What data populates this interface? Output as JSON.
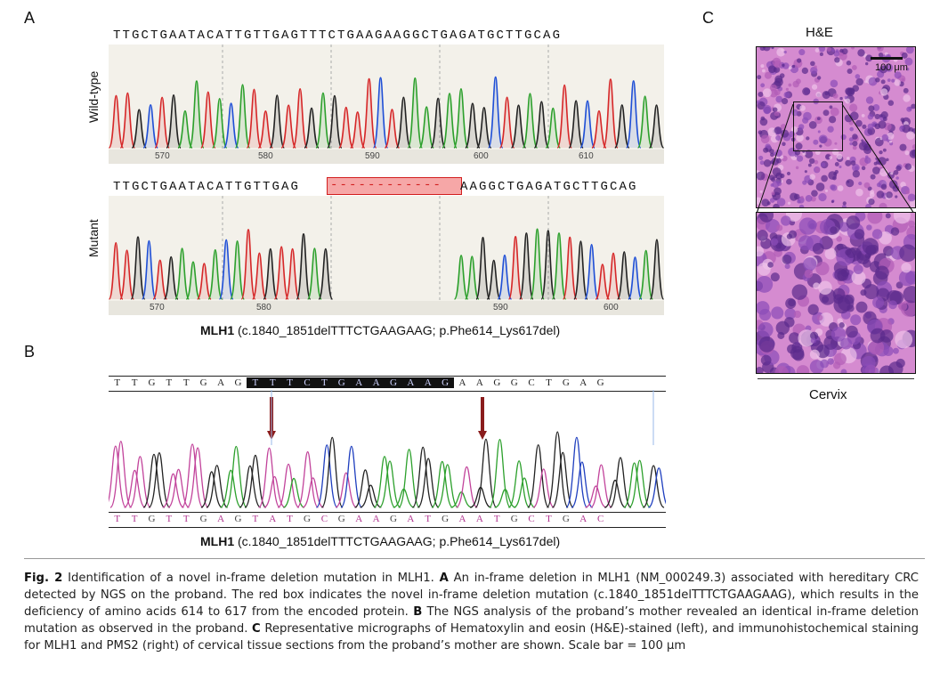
{
  "panels": {
    "a": "A",
    "b": "B",
    "c": "C"
  },
  "panel_a": {
    "wildtype_sequence": "TTGCTGAATACATTGTTGAGTTTCTGAAGAAGGCTGAGATGCTTGCAG",
    "wildtype_label": "Wild-type",
    "wildtype_ticks": [
      "570",
      "580",
      "590",
      "600",
      "610"
    ],
    "mutant_seq_left": "TTGCTGAATACATTGTTGAG",
    "mutant_deletion": "------------",
    "mutant_seq_right": "AAGGCTGAGATGCTTGCAG",
    "mutant_label": "Mutant",
    "mutant_ticks": [
      "570",
      "580",
      "590",
      "600"
    ],
    "gene": "MLH1",
    "variant": "(c.1840_1851delTTTCTGAAGAAG; p.Phe614_Lys617del)"
  },
  "panel_b": {
    "top_sequence": [
      "T",
      "T",
      "G",
      "T",
      "T",
      "G",
      "A",
      "G",
      "T",
      "T",
      "T",
      "C",
      "T",
      "G",
      "A",
      "A",
      "G",
      "A",
      "A",
      "G",
      "A",
      "A",
      "G",
      "G",
      "C",
      "T",
      "G",
      "A",
      "G"
    ],
    "bottom_sequence": [
      "T",
      "T",
      "G",
      "T",
      "T",
      "G",
      "A",
      "G",
      "T",
      "A",
      "T",
      "G",
      "C",
      "G",
      "A",
      "A",
      "G",
      "A",
      "T",
      "G",
      "A",
      "A",
      "T",
      "G",
      "C",
      "T",
      "G",
      "A",
      "C"
    ],
    "gene": "MLH1",
    "variant": "(c.1840_1851delTTTCTGAAGAAG; p.Phe614_Lys617del)"
  },
  "panel_c": {
    "stain_label": "H&E",
    "scale_bar": "100 μm",
    "tissue_label": "Cervix"
  },
  "caption": {
    "fig_label": "Fig. 2",
    "intro": " Identification of a novel in-frame deletion mutation in MLH1. ",
    "a_label": "A",
    "a_text": " An in-frame deletion in MLH1 (NM_000249.3) associated with hereditary CRC detected by NGS on the proband. The red box indicates the novel in-frame deletion mutation (c.1840_1851delTTTCTGAAGAAG), which results in the deficiency of amino acids 614 to 617 from the encoded protein. ",
    "b_label": "B",
    "b_text": " The NGS analysis of the proband’s mother revealed an identical in-frame deletion mutation as observed in the proband. ",
    "c_label": "C",
    "c_text": " Representative micrographs of Hematoxylin and eosin (H&E)-stained (left), and immunohistochemical staining for MLH1 and PMS2 (right) of cervical tissue sections from the proband’s mother are shown. Scale bar = 100 μm"
  },
  "colors": {
    "A": "#2ca02c",
    "C": "#1f4fd6",
    "G": "#222222",
    "T": "#d62728",
    "deletion": "#d21f1f"
  }
}
